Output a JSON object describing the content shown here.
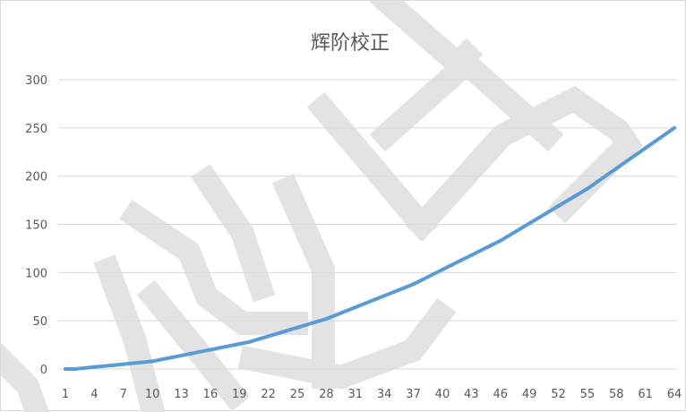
{
  "chart_data": {
    "type": "line",
    "title": "辉阶校正",
    "xlabel": "",
    "ylabel": "",
    "ylim": [
      0,
      300
    ],
    "yticks": [
      0,
      50,
      100,
      150,
      200,
      250,
      300
    ],
    "grid": true,
    "legend": "none",
    "x": [
      1,
      2,
      3,
      4,
      5,
      6,
      7,
      8,
      9,
      10,
      11,
      12,
      13,
      14,
      15,
      16,
      17,
      18,
      19,
      20,
      21,
      22,
      23,
      24,
      25,
      26,
      27,
      28,
      29,
      30,
      31,
      32,
      33,
      34,
      35,
      36,
      37,
      38,
      39,
      40,
      41,
      42,
      43,
      44,
      45,
      46,
      47,
      48,
      49,
      50,
      51,
      52,
      53,
      54,
      55,
      56,
      57,
      58,
      59,
      60,
      61,
      62,
      63,
      64
    ],
    "xtick_labels": [
      "1",
      "4",
      "7",
      "10",
      "13",
      "16",
      "19",
      "22",
      "25",
      "28",
      "31",
      "34",
      "37",
      "40",
      "43",
      "46",
      "49",
      "52",
      "55",
      "58",
      "61",
      "64"
    ],
    "series": [
      {
        "color": "#5b9bd5",
        "values": [
          0,
          0,
          1,
          2,
          3,
          4,
          5,
          6,
          7,
          8,
          10,
          12,
          14,
          16,
          18,
          20,
          22,
          24,
          26,
          28,
          31,
          34,
          37,
          40,
          43,
          46,
          49,
          52,
          56,
          60,
          64,
          68,
          72,
          76,
          80,
          84,
          88,
          93,
          98,
          103,
          108,
          113,
          118,
          123,
          128,
          133,
          139,
          145,
          151,
          157,
          163,
          169,
          175,
          181,
          187,
          194,
          201,
          208,
          215,
          222,
          229,
          236,
          243,
          250
        ]
      }
    ]
  }
}
